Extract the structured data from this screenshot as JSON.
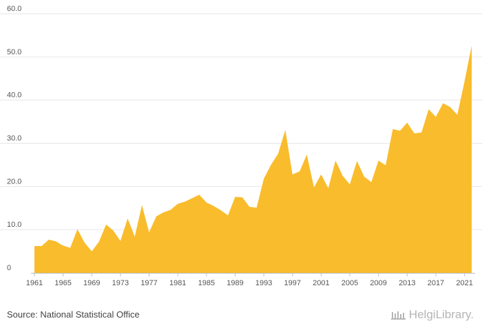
{
  "chart_data": {
    "type": "area",
    "color": "#F9BC2C",
    "grid": true,
    "ylim": [
      0,
      60
    ],
    "y_ticks": [
      "0",
      "10.0",
      "20.0",
      "30.0",
      "40.0",
      "50.0",
      "60.0"
    ],
    "y_tick_values": [
      0,
      10,
      20,
      30,
      40,
      50,
      60
    ],
    "x_ticks": [
      "1961",
      "1965",
      "1969",
      "1973",
      "1977",
      "1981",
      "1985",
      "1989",
      "1993",
      "1997",
      "2001",
      "2005",
      "2009",
      "2013",
      "2017",
      "2021"
    ],
    "x_tick_values": [
      1961,
      1965,
      1969,
      1973,
      1977,
      1981,
      1985,
      1989,
      1993,
      1997,
      2001,
      2005,
      2009,
      2013,
      2017,
      2021
    ],
    "x": [
      1961,
      1962,
      1963,
      1964,
      1965,
      1966,
      1967,
      1968,
      1969,
      1970,
      1971,
      1972,
      1973,
      1974,
      1975,
      1976,
      1977,
      1978,
      1979,
      1980,
      1981,
      1982,
      1983,
      1984,
      1985,
      1986,
      1987,
      1988,
      1989,
      1990,
      1991,
      1992,
      1993,
      1994,
      1995,
      1996,
      1997,
      1998,
      1999,
      2000,
      2001,
      2002,
      2003,
      2004,
      2005,
      2006,
      2007,
      2008,
      2009,
      2010,
      2011,
      2012,
      2013,
      2014,
      2015,
      2016,
      2017,
      2018,
      2019,
      2020,
      2021,
      2022
    ],
    "values": [
      6.2,
      6.2,
      7.7,
      7.3,
      6.3,
      5.8,
      10.1,
      7.0,
      5.0,
      7.2,
      11.2,
      9.8,
      7.4,
      12.6,
      8.4,
      15.7,
      9.4,
      13.1,
      14.0,
      14.6,
      16.0,
      16.5,
      17.3,
      18.1,
      16.3,
      15.5,
      14.5,
      13.3,
      17.6,
      17.5,
      15.3,
      15.1,
      21.8,
      25.0,
      27.6,
      33.1,
      22.8,
      23.5,
      27.4,
      19.8,
      22.8,
      19.6,
      26.0,
      22.5,
      20.5,
      25.9,
      22.3,
      21.0,
      26.0,
      24.9,
      33.3,
      32.9,
      34.8,
      32.3,
      32.5,
      37.9,
      36.1,
      39.3,
      38.4,
      36.6,
      44.3,
      52.6
    ]
  },
  "footer": {
    "source": "Source: National Statistical Office",
    "brand": "HelgiLibrary."
  }
}
